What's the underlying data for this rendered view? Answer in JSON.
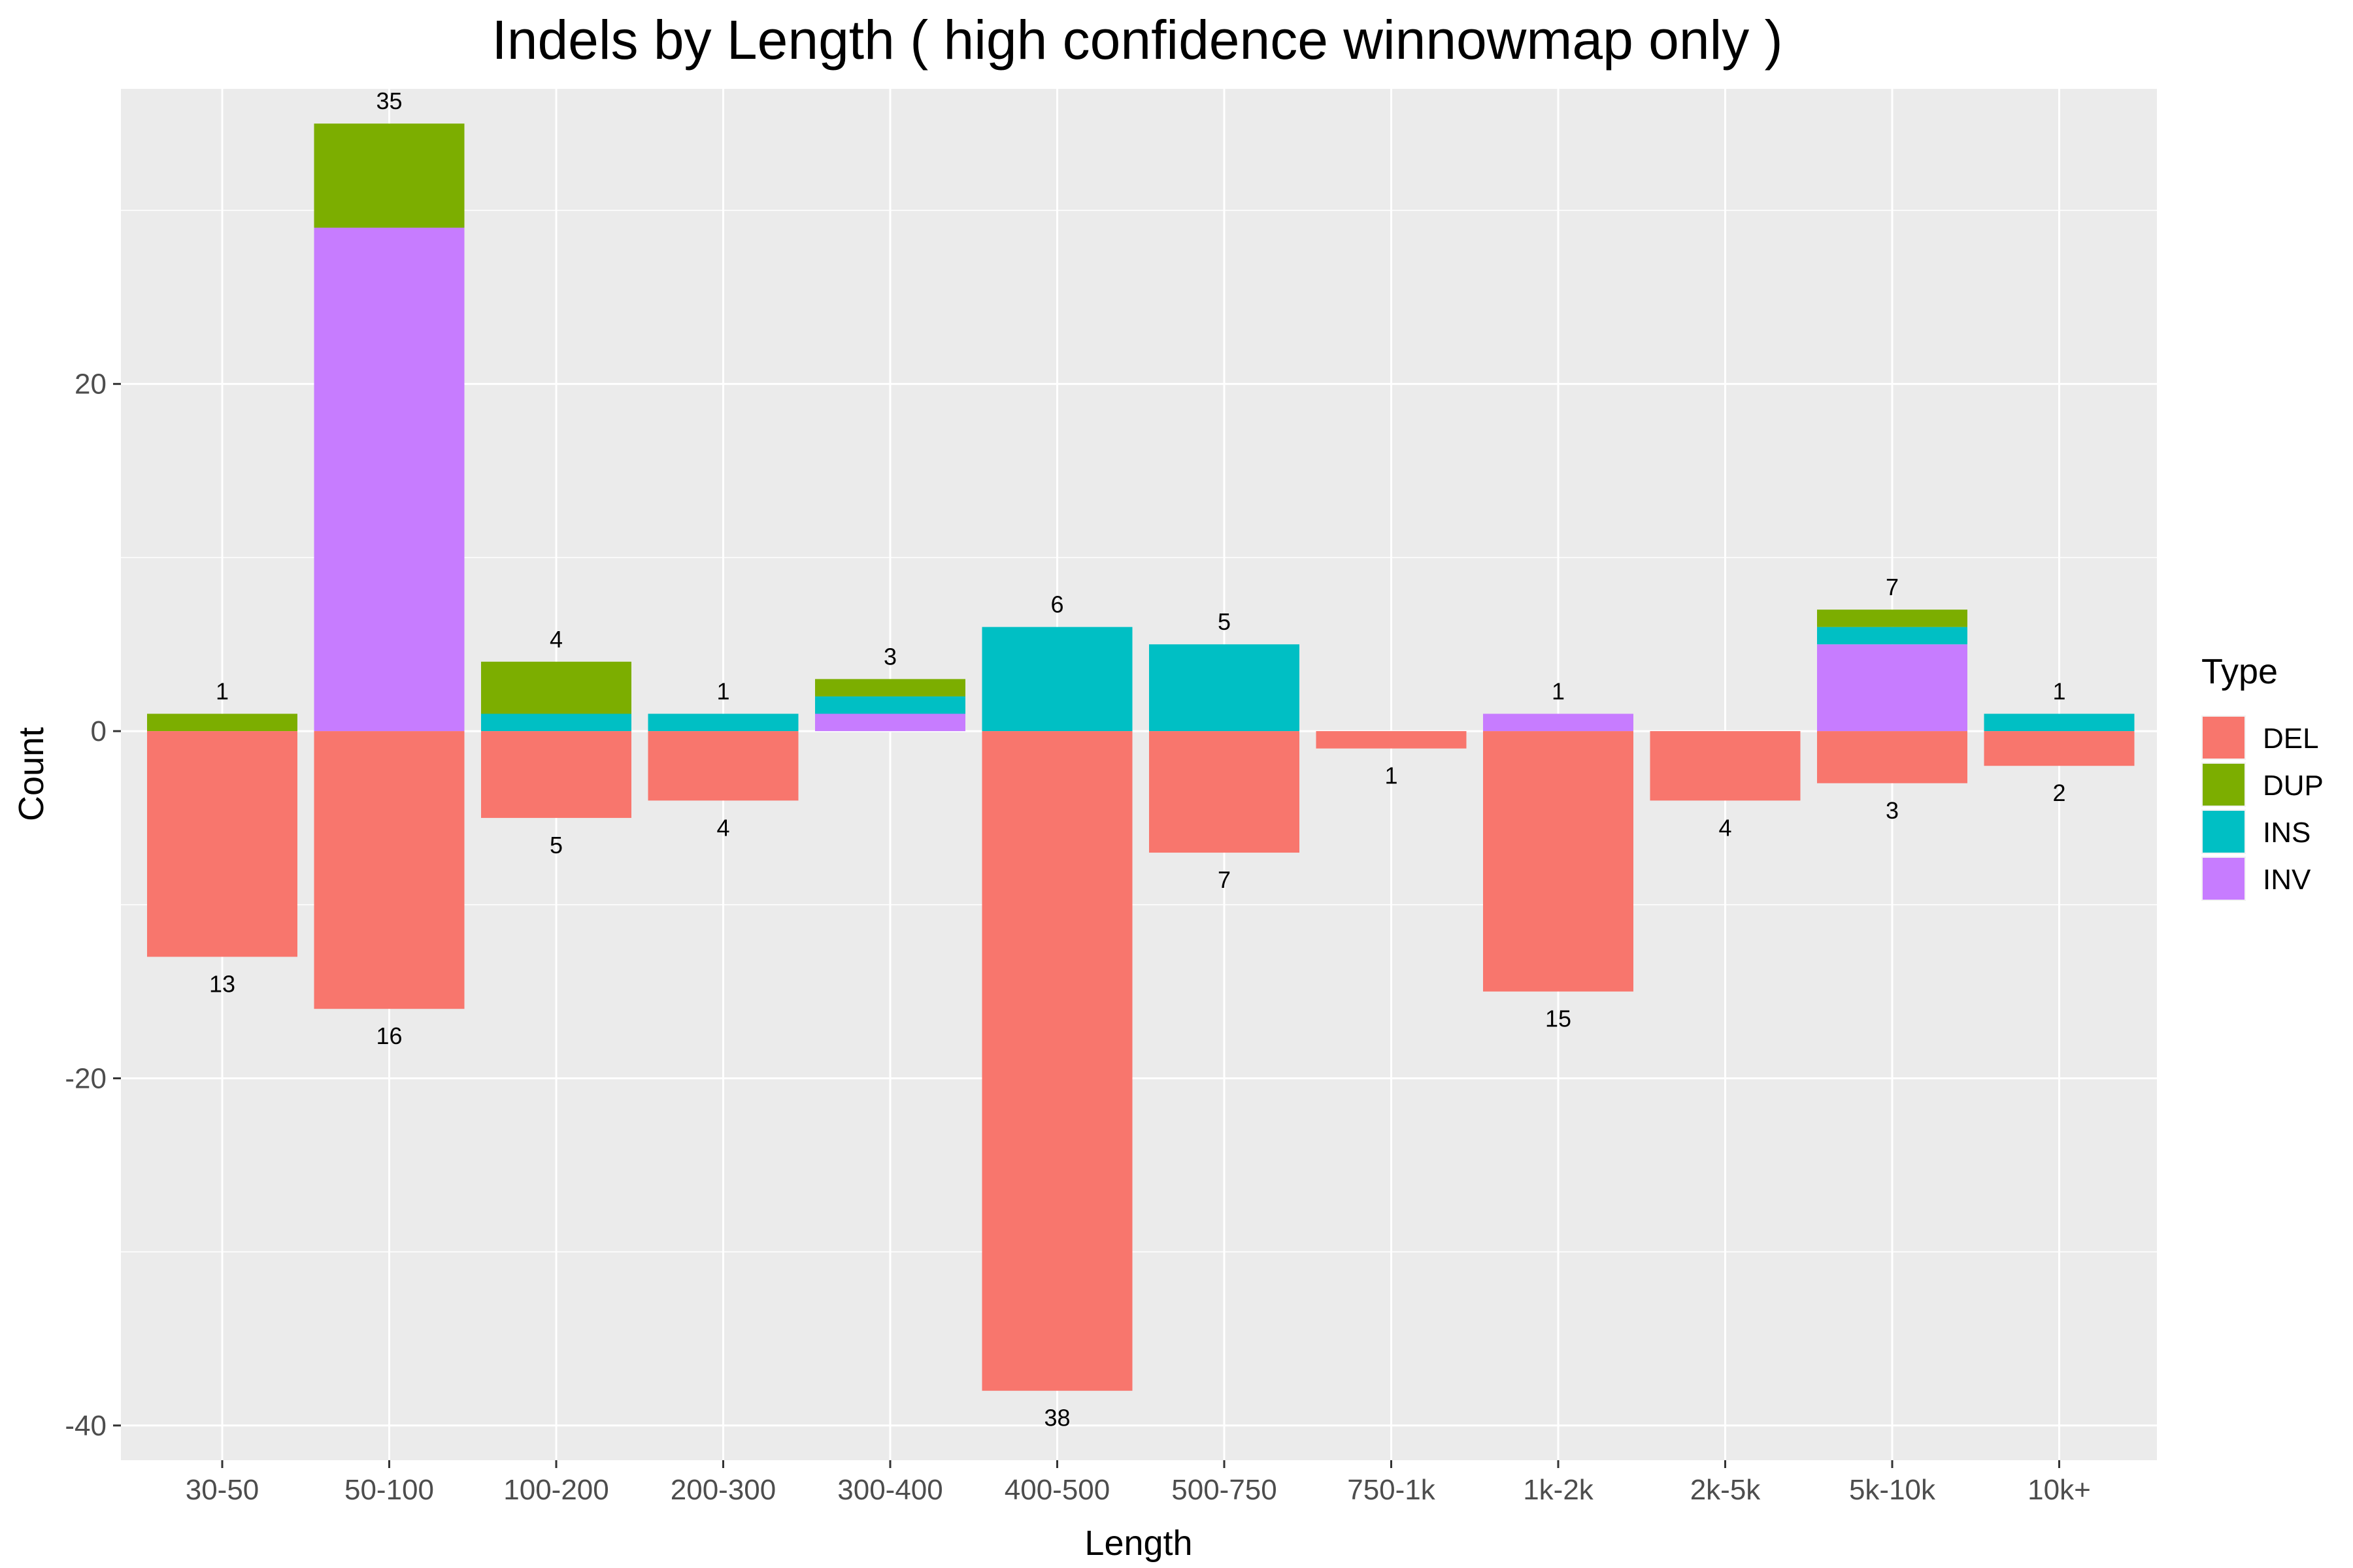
{
  "chart_data": {
    "type": "bar",
    "stacked": true,
    "diverging": true,
    "title": "Indels by Length ( high confidence winnowmap only )",
    "xlabel": "Length",
    "ylabel": "Count",
    "ylim": [
      -42,
      37
    ],
    "yticks": [
      -40,
      -20,
      0,
      20
    ],
    "grid": true,
    "legend_position": "right",
    "legend_title": "Type",
    "categories": [
      "30-50",
      "50-100",
      "100-200",
      "200-300",
      "300-400",
      "400-500",
      "500-750",
      "750-1k",
      "1k-2k",
      "2k-5k",
      "5k-10k",
      "10k+"
    ],
    "series": [
      {
        "name": "DEL",
        "color": "#F8766D",
        "values": [
          -13,
          -16,
          -5,
          -4,
          0,
          -38,
          -7,
          -1,
          -15,
          -4,
          -3,
          -2
        ]
      },
      {
        "name": "DUP",
        "color": "#7CAE00",
        "values": [
          1,
          6,
          3,
          0,
          1,
          0,
          0,
          0,
          0,
          0,
          1,
          0
        ]
      },
      {
        "name": "INS",
        "color": "#00BFC4",
        "values": [
          0,
          0,
          1,
          1,
          1,
          6,
          5,
          0,
          0,
          0,
          1,
          1
        ]
      },
      {
        "name": "INV",
        "color": "#C77CFF",
        "values": [
          0,
          29,
          0,
          0,
          1,
          0,
          0,
          0,
          1,
          0,
          5,
          0
        ]
      }
    ],
    "positive_totals": [
      "1",
      "35",
      "4",
      "1",
      "3",
      "6",
      "5",
      "",
      "1",
      "",
      "7",
      "1"
    ],
    "negative_totals": [
      "13",
      "16",
      "5",
      "4",
      "",
      "38",
      "7",
      "1",
      "15",
      "4",
      "3",
      "2"
    ]
  }
}
